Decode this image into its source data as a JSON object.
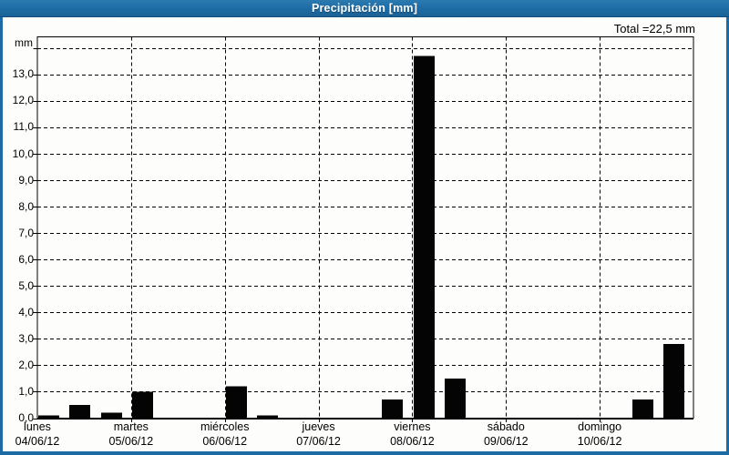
{
  "header": {
    "title": "Precipitación [mm]"
  },
  "chart_data": {
    "type": "bar",
    "title": "Precipitación [mm]",
    "total_label": "Total =22,5 mm",
    "total_mm": 22.5,
    "y_axis": {
      "unit": "mm",
      "tick_labels": [
        "0,0",
        "1,0",
        "2,0",
        "3,0",
        "4,0",
        "5,0",
        "6,0",
        "7,0",
        "8,0",
        "9,0",
        "10,0",
        "11,0",
        "12,0",
        "13,0"
      ],
      "tick_step_mm": 1.0,
      "gridline_max_mm": 14.0,
      "frame_max_mm": 14.4
    },
    "x_axis": {
      "slots_per_day": 3,
      "days": [
        {
          "name": "lunes",
          "date": "04/06/12",
          "values": [
            0.1,
            0.5,
            0.2
          ]
        },
        {
          "name": "martes",
          "date": "05/06/12",
          "values": [
            1.0,
            0,
            0
          ]
        },
        {
          "name": "miércoles",
          "date": "06/06/12",
          "values": [
            1.2,
            0.1,
            0
          ]
        },
        {
          "name": "jueves",
          "date": "07/06/12",
          "values": [
            0,
            0,
            0.7
          ]
        },
        {
          "name": "viernes",
          "date": "08/06/12",
          "values": [
            13.7,
            1.5,
            0
          ]
        },
        {
          "name": "sábado",
          "date": "09/06/12",
          "values": [
            0,
            0,
            0
          ]
        },
        {
          "name": "domingo",
          "date": "10/06/12",
          "values": [
            0,
            0.7,
            2.8
          ]
        }
      ]
    },
    "grid": {
      "style": "dashed",
      "horizontal": true,
      "vertical": true
    },
    "legend": "none",
    "colors": {
      "bar": "#040404",
      "grid": "#000000",
      "titlebar_blue": "#1e6ca4",
      "border_blue": "#1c6ba5",
      "background": "#fdfdfc",
      "text": "#000000"
    }
  }
}
